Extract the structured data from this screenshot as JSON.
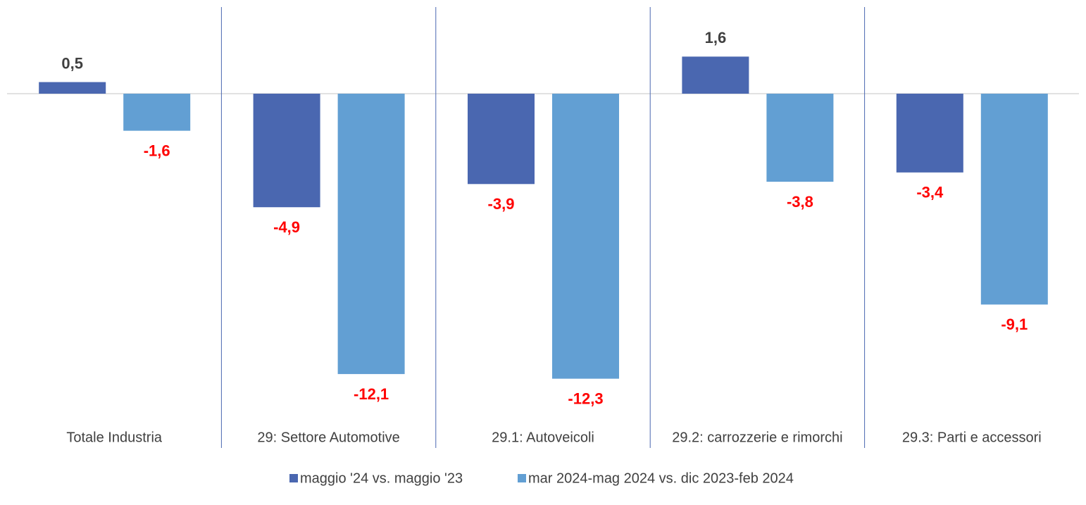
{
  "chart_data": {
    "type": "bar",
    "categories": [
      "Totale Industria",
      "29: Settore Automotive",
      "29.1: Autoveicoli",
      "29.2: carrozzerie e rimorchi",
      "29.3: Parti e accessori"
    ],
    "series": [
      {
        "name": "maggio '24 vs. maggio '23",
        "color": "#4a67b0",
        "values": [
          0.5,
          -4.9,
          -3.9,
          1.6,
          -3.4
        ],
        "value_labels": [
          "0,5",
          "-4,9",
          "-3,9",
          "1,6",
          "-3,4"
        ]
      },
      {
        "name": "mar 2024-mag 2024 vs. dic 2023-feb 2024",
        "color": "#629fd3",
        "values": [
          -1.6,
          -12.1,
          -12.3,
          -3.8,
          -9.1
        ],
        "value_labels": [
          "-1,6",
          "-12,1",
          "-12,3",
          "-3,8",
          "-9,1"
        ]
      }
    ],
    "positive_label_color": "#404040",
    "negative_label_color": "#ff0000",
    "legend": "bottom"
  }
}
